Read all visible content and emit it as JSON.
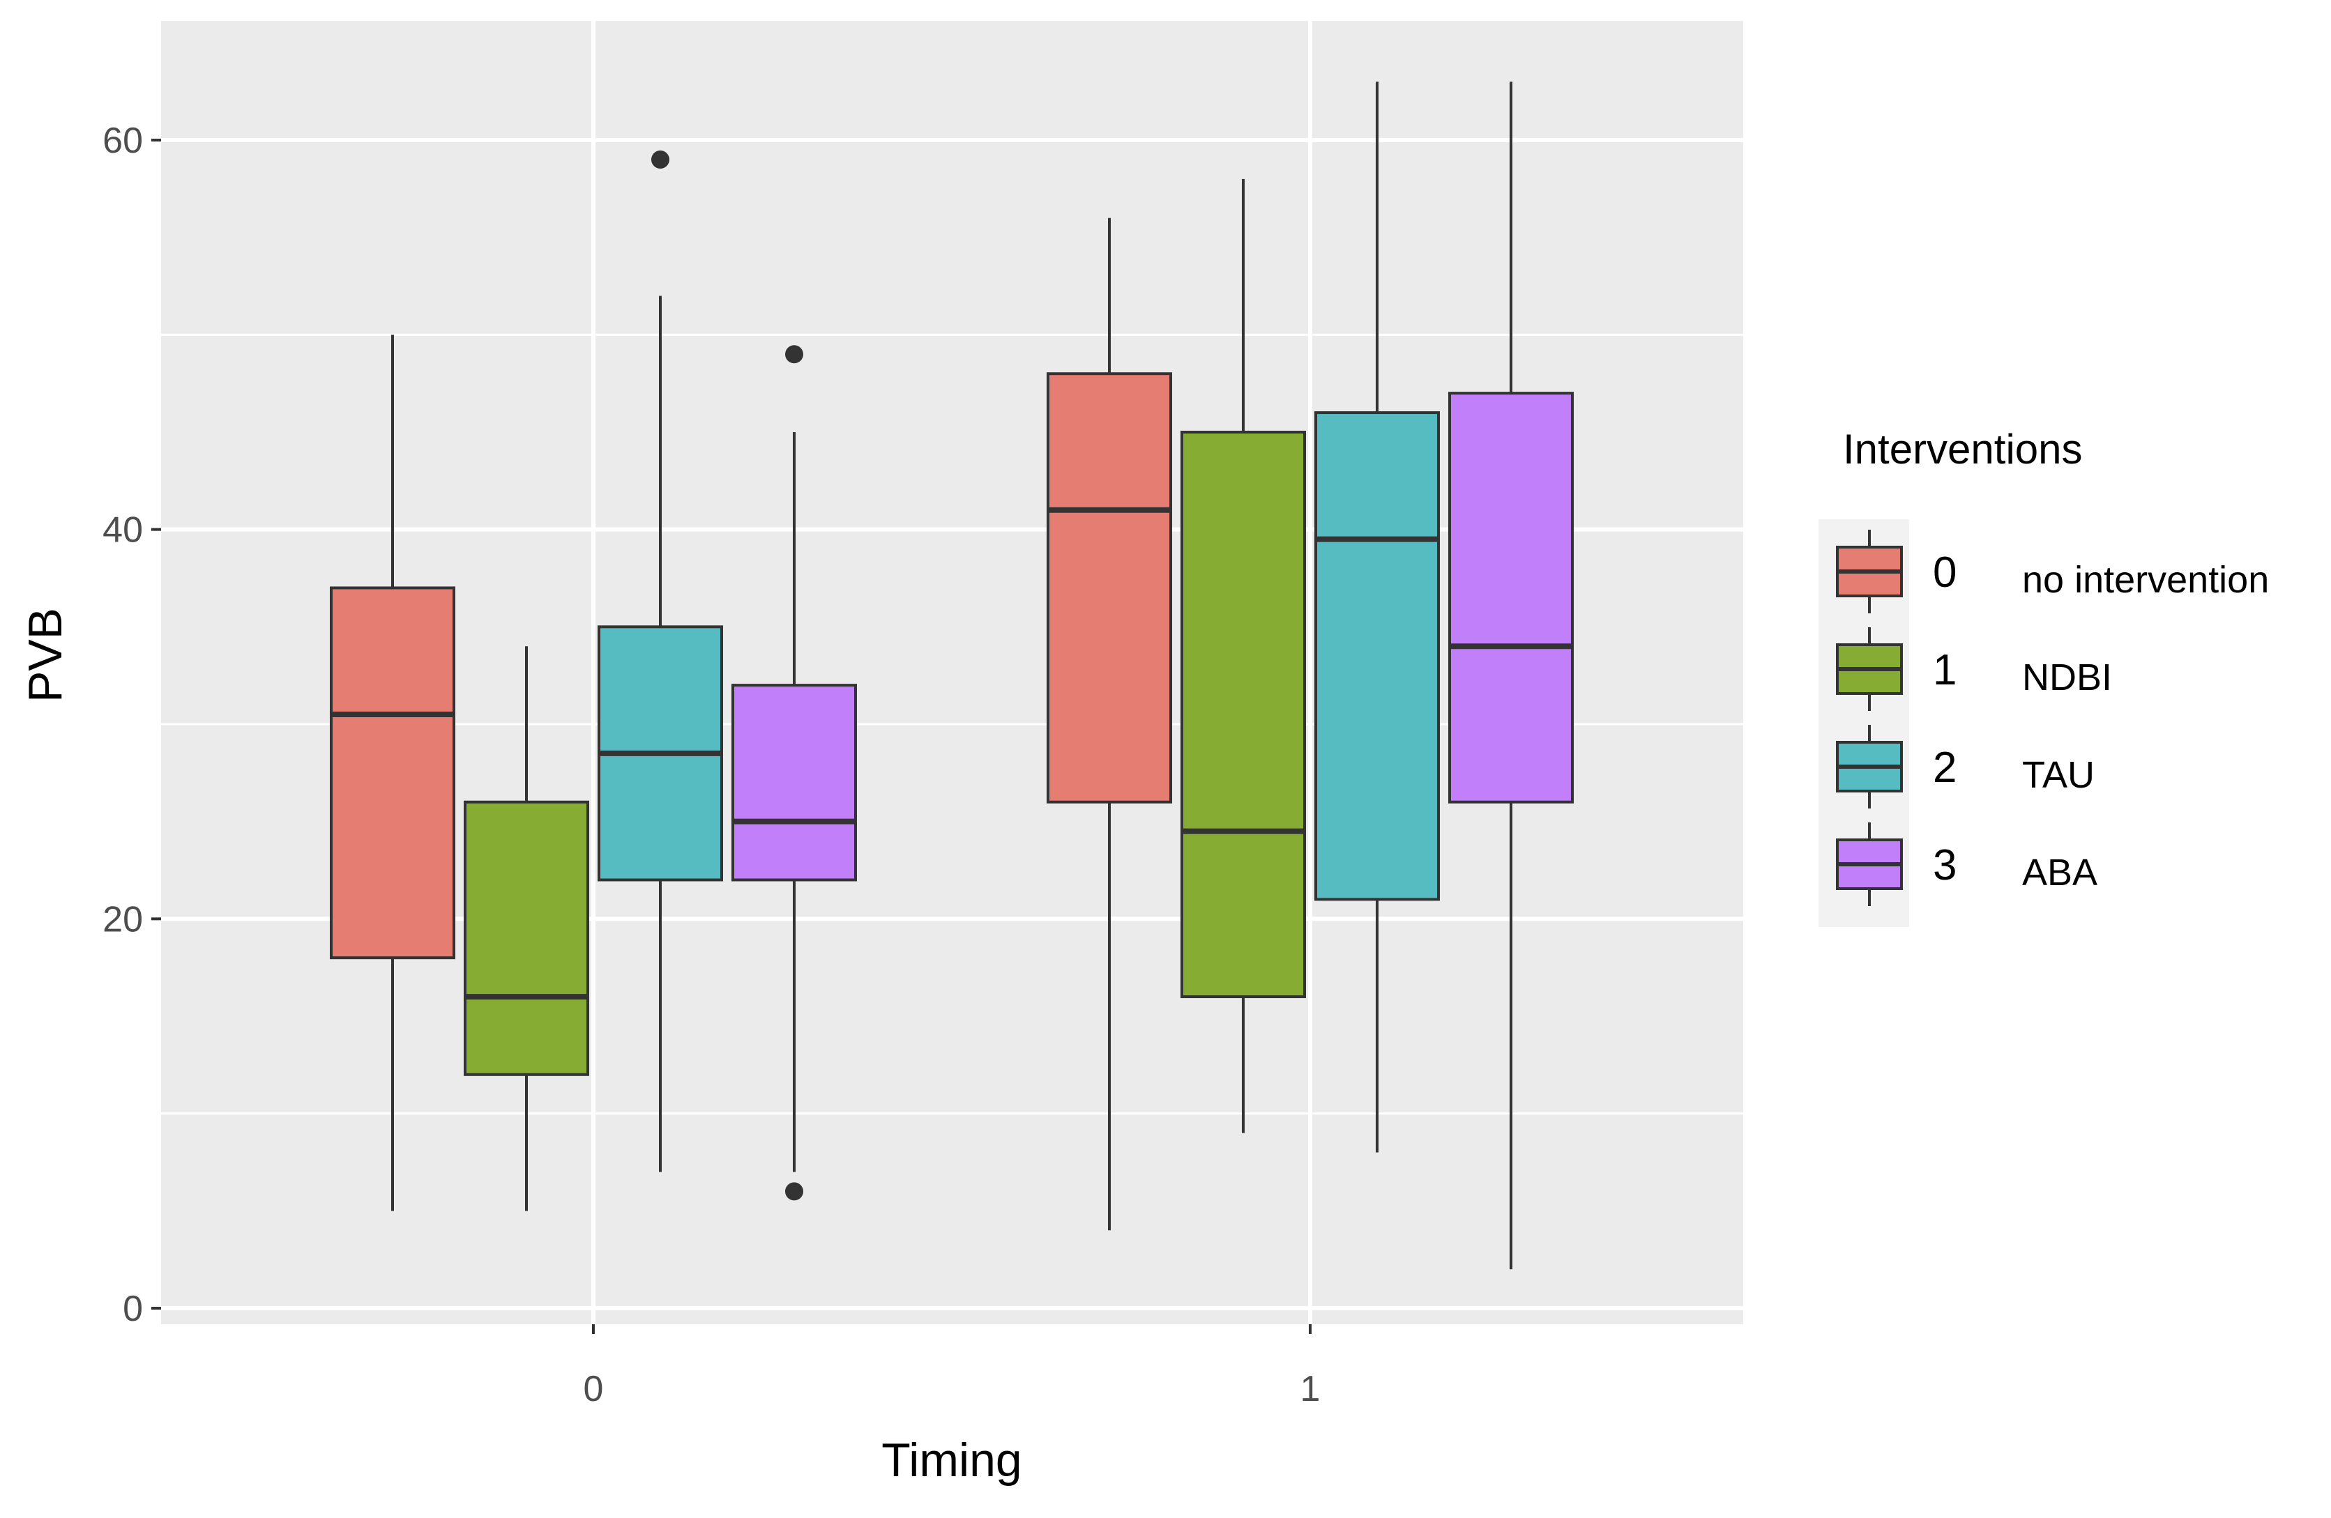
{
  "chart_data": {
    "type": "boxplot",
    "xlabel": "Timing",
    "ylabel": "PVB",
    "ylim": [
      -1,
      66
    ],
    "yticks": [
      0,
      20,
      40,
      60
    ],
    "categories": [
      "0",
      "1"
    ],
    "legend": {
      "title": "Interventions",
      "position": "right",
      "entries": [
        {
          "key": "0",
          "label": "no intervention",
          "color": "#E67D72"
        },
        {
          "key": "1",
          "label": "NDBI",
          "color": "#86AC34"
        },
        {
          "key": "2",
          "label": "TAU",
          "color": "#56BCC2"
        },
        {
          "key": "3",
          "label": "ABA",
          "color": "#C17FF9"
        }
      ]
    },
    "series": [
      {
        "name": "0",
        "boxes": [
          {
            "category": "0",
            "min": 5,
            "q1": 18,
            "median": 30.5,
            "q3": 37,
            "max": 50,
            "outliers": []
          },
          {
            "category": "1",
            "min": 4,
            "q1": 26,
            "median": 41,
            "q3": 48,
            "max": 56,
            "outliers": []
          }
        ]
      },
      {
        "name": "1",
        "boxes": [
          {
            "category": "0",
            "min": 5,
            "q1": 12,
            "median": 16,
            "q3": 26,
            "max": 34,
            "outliers": []
          },
          {
            "category": "1",
            "min": 9,
            "q1": 16,
            "median": 24.5,
            "q3": 45,
            "max": 58,
            "outliers": []
          }
        ]
      },
      {
        "name": "2",
        "boxes": [
          {
            "category": "0",
            "min": 7,
            "q1": 22,
            "median": 28.5,
            "q3": 35,
            "max": 52,
            "outliers": [
              59
            ]
          },
          {
            "category": "1",
            "min": 8,
            "q1": 21,
            "median": 39.5,
            "q3": 46,
            "max": 63,
            "outliers": []
          }
        ]
      },
      {
        "name": "3",
        "boxes": [
          {
            "category": "0",
            "min": 7,
            "q1": 22,
            "median": 25,
            "q3": 32,
            "max": 45,
            "outliers": [
              49,
              6
            ]
          },
          {
            "category": "1",
            "min": 2,
            "q1": 26,
            "median": 34,
            "q3": 47,
            "max": 63,
            "outliers": []
          }
        ]
      }
    ]
  }
}
